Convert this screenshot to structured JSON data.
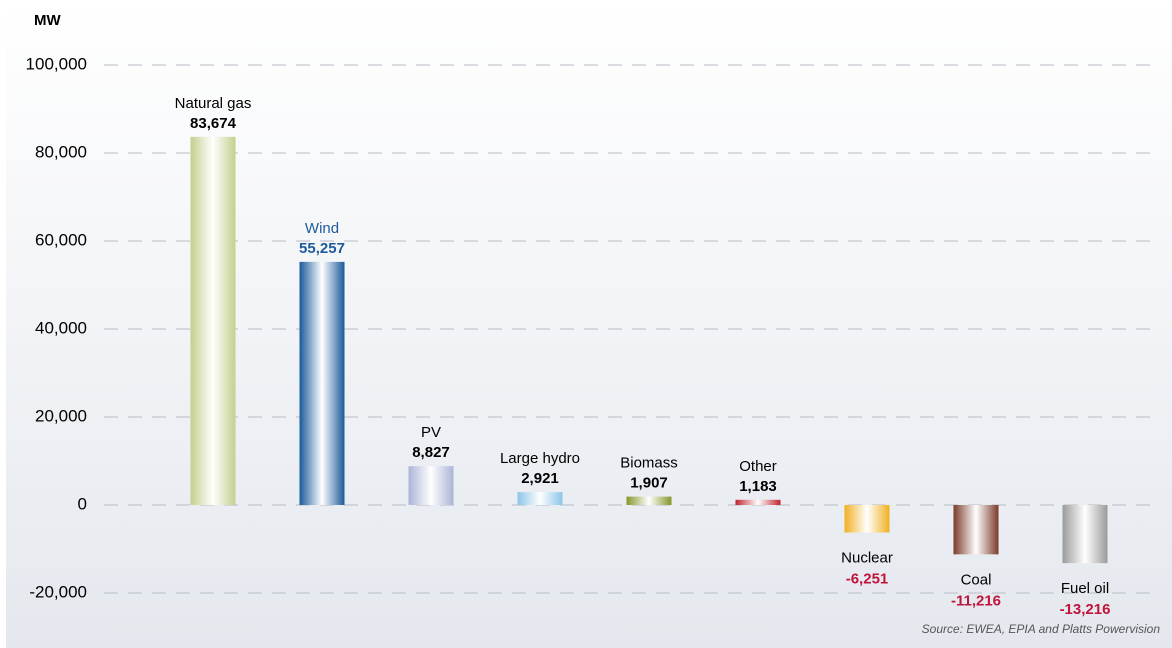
{
  "chart_data": {
    "type": "bar",
    "y_axis_label": "MW",
    "source": "Source: EWEA, EPIA and Platts Powervision",
    "categories": [
      "Natural gas",
      "Wind",
      "PV",
      "Large hydro",
      "Biomass",
      "Other",
      "Nuclear",
      "Coal",
      "Fuel oil"
    ],
    "values": [
      83674,
      55257,
      8827,
      2921,
      1907,
      1183,
      -6251,
      -11216,
      -13216
    ],
    "value_labels": [
      "83,674",
      "55,257",
      "8,827",
      "2,921",
      "1,907",
      "1,183",
      "-6,251",
      "-11,216",
      "-13,216"
    ],
    "colors": [
      "#c3d08e",
      "#1a5a9a",
      "#aab4d6",
      "#8cc4e8",
      "#86962a",
      "#c0242e",
      "#f0b020",
      "#7a3a2a",
      "#9a9a9a"
    ],
    "label_colors": [
      "#000000",
      "#1f5b9c",
      "#000000",
      "#000000",
      "#000000",
      "#000000",
      "#c0143c",
      "#c0143c",
      "#c0143c"
    ],
    "ylim": [
      -20000,
      100000
    ],
    "yticks": [
      {
        "value": -20000,
        "label": "-20,000"
      },
      0,
      {
        "value": 20000,
        "label": "20,000"
      },
      {
        "value": 40000,
        "label": "40,000"
      },
      {
        "value": 60000,
        "label": "60,000"
      },
      {
        "value": 80000,
        "label": "80,000"
      },
      {
        "value": 100000,
        "label": "100,000"
      }
    ],
    "grid": true
  }
}
